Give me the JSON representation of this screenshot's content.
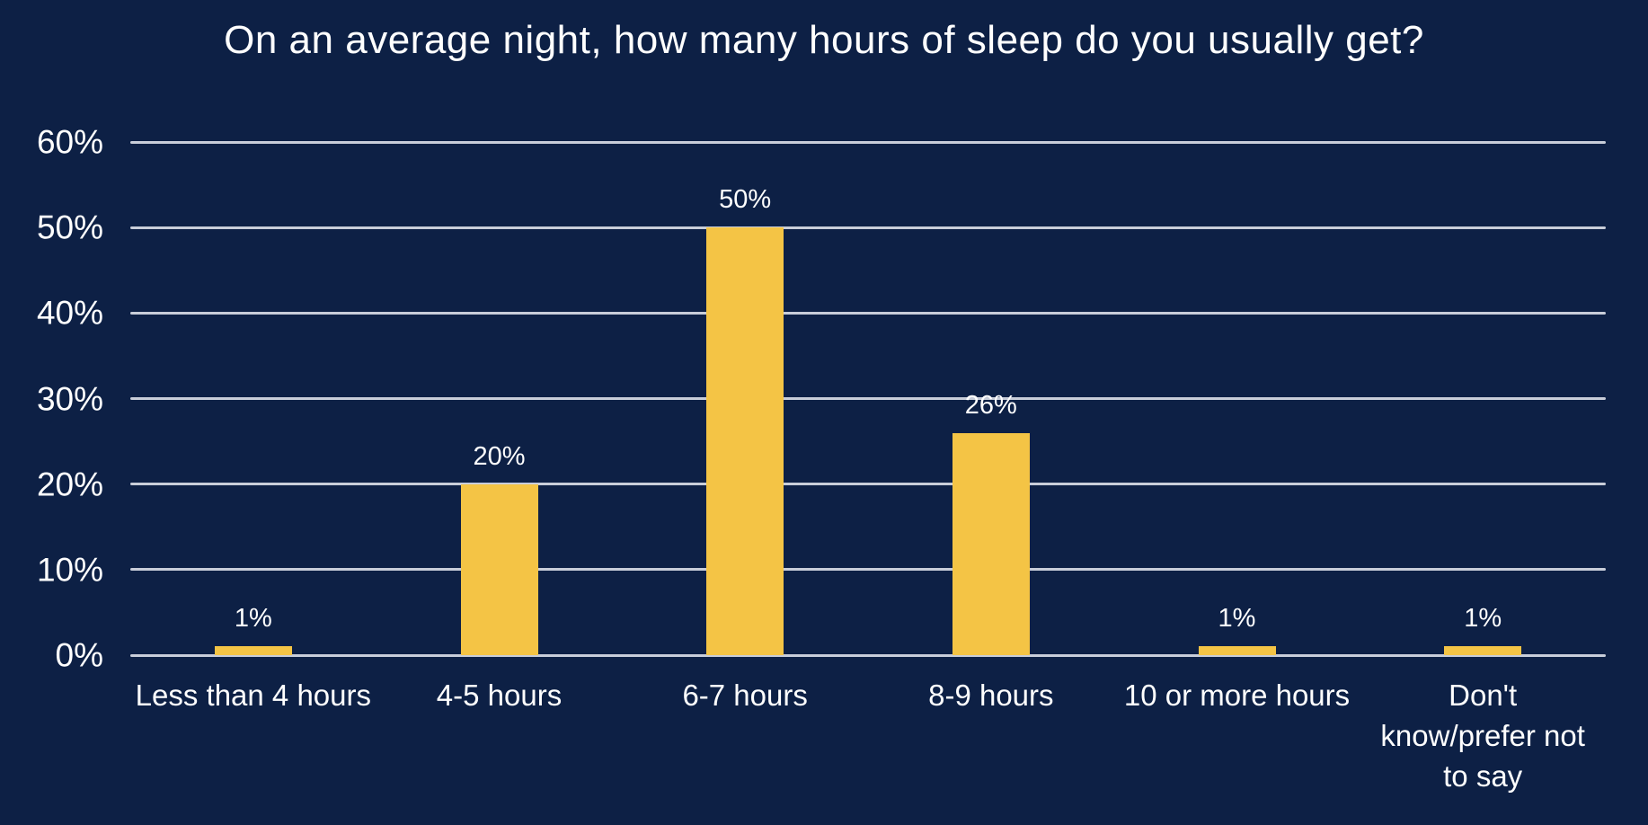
{
  "title": "On an average night, how many hours of sleep do you usually get?",
  "colors": {
    "background": "#0d2045",
    "bar": "#f4c445",
    "gridline": "#c8cdd9",
    "text": "#ffffff"
  },
  "chart_data": {
    "type": "bar",
    "title": "On an average night, how many hours of sleep do you usually get?",
    "categories": [
      "Less than 4 hours",
      "4-5 hours",
      "6-7 hours",
      "8-9 hours",
      "10 or more hours",
      "Don't know/prefer not to say"
    ],
    "values": [
      1,
      20,
      50,
      26,
      1,
      1
    ],
    "value_labels": [
      "1%",
      "20%",
      "50%",
      "26%",
      "1%",
      "1%"
    ],
    "xlabel": "",
    "ylabel": "",
    "ylim": [
      0,
      60
    ],
    "ytick_step": 10,
    "ytick_labels": [
      "0%",
      "10%",
      "20%",
      "30%",
      "40%",
      "50%",
      "60%"
    ],
    "grid": "horizontal-only",
    "legend": "none",
    "bar_color": "#f4c445",
    "background_color": "#0d2045",
    "label_position": "above-bars"
  }
}
